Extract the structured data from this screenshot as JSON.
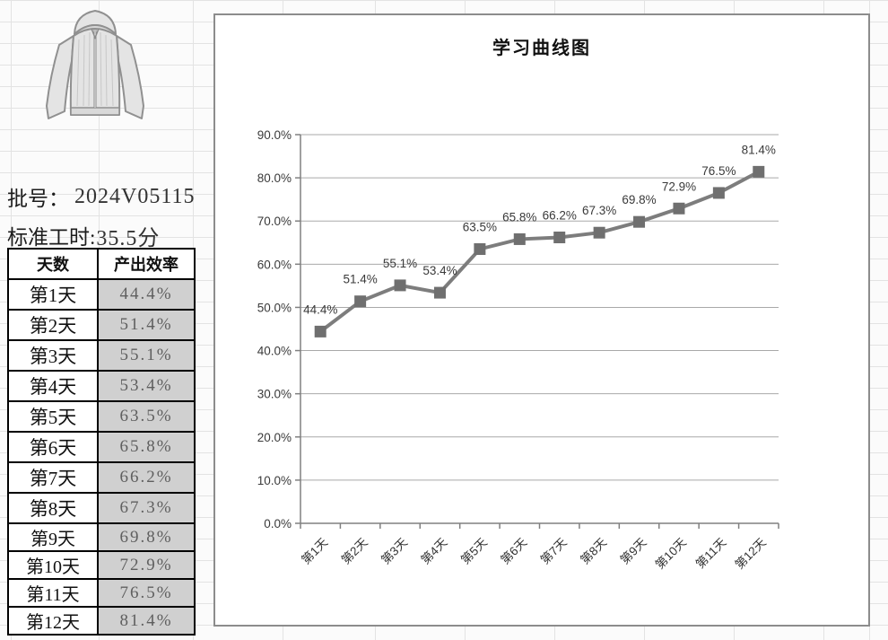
{
  "left_panel": {
    "jacket_icon": "hooded-jacket",
    "batch": {
      "label": "批号：",
      "value": "2024V05115"
    },
    "standard_time": {
      "label": "标准工时:",
      "value": "35.5分"
    },
    "table": {
      "headers": [
        "天数",
        "产出效率"
      ],
      "rows": [
        [
          "第1天",
          "44.4%"
        ],
        [
          "第2天",
          "51.4%"
        ],
        [
          "第3天",
          "55.1%"
        ],
        [
          "第4天",
          "53.4%"
        ],
        [
          "第5天",
          "63.5%"
        ],
        [
          "第6天",
          "65.8%"
        ],
        [
          "第7天",
          "66.2%"
        ],
        [
          "第8天",
          "67.3%"
        ],
        [
          "第9天",
          "69.8%"
        ],
        [
          "第10天",
          "72.9%"
        ],
        [
          "第11天",
          "76.5%"
        ],
        [
          "第12天",
          "81.4%"
        ]
      ]
    }
  },
  "chart_data": {
    "type": "line",
    "title": "学习曲线图",
    "categories": [
      "第1天",
      "第2天",
      "第3天",
      "第4天",
      "第5天",
      "第6天",
      "第7天",
      "第8天",
      "第9天",
      "第10天",
      "第11天",
      "第12天"
    ],
    "values": [
      44.4,
      51.4,
      55.1,
      53.4,
      63.5,
      65.8,
      66.2,
      67.3,
      69.8,
      72.9,
      76.5,
      81.4
    ],
    "data_labels": [
      "44.4%",
      "51.4%",
      "55.1%",
      "53.4%",
      "63.5%",
      "65.8%",
      "66.2%",
      "67.3%",
      "69.8%",
      "72.9%",
      "76.5%",
      "81.4%"
    ],
    "xlabel": "",
    "ylabel": "",
    "ylim": [
      0,
      90
    ],
    "ytick_labels": [
      "0.0%",
      "10.0%",
      "20.0%",
      "30.0%",
      "40.0%",
      "50.0%",
      "60.0%",
      "70.0%",
      "80.0%",
      "90.0%"
    ],
    "grid": true,
    "legend_position": "none",
    "marker": "square",
    "colors": {
      "line": "#7d7d7d",
      "marker": "#6f6f6f",
      "gridline": "#a9a9a9",
      "axis": "#808080",
      "text": "#3a3a3a"
    }
  }
}
